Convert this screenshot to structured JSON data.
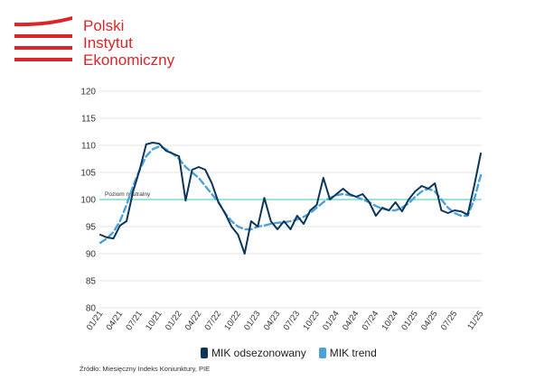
{
  "logo": {
    "line1": "Polski",
    "line2": "Instytut",
    "line3": "Ekonomiczny",
    "color": "#d8262b"
  },
  "source": "Źródło: Miesięczny Indeks Koniunktury, PIE",
  "colors": {
    "mik": "#0d3558",
    "trend": "#4aa3d8",
    "neutral": "#5fd3c8",
    "grid": "#e3e3e3"
  },
  "chart_data": {
    "type": "line",
    "title": "",
    "xlabel": "",
    "ylabel": "",
    "ylim": [
      80,
      120
    ],
    "yticks": [
      80,
      85,
      90,
      95,
      100,
      105,
      110,
      115,
      120
    ],
    "xtick_labels": [
      "01/21",
      "04/21",
      "07/21",
      "10/21",
      "01/22",
      "04/22",
      "07/22",
      "10/22",
      "01/23",
      "04/23",
      "07/23",
      "10/23",
      "01/24",
      "04/24",
      "07/24",
      "10/24",
      "01/25",
      "04/25",
      "07/25",
      "11/25"
    ],
    "xtick_index": [
      0,
      3,
      6,
      9,
      12,
      15,
      18,
      21,
      24,
      27,
      30,
      33,
      36,
      39,
      42,
      45,
      48,
      51,
      54,
      58
    ],
    "reference_line": {
      "value": 100,
      "label": "Poziom neutralny"
    },
    "legend": {
      "position": "bottom"
    },
    "series": [
      {
        "name": "MIK odsezonowany",
        "style": "solid",
        "values": [
          93.5,
          93.0,
          92.8,
          95.2,
          96.0,
          101.5,
          105.5,
          110.2,
          110.5,
          110.3,
          109.0,
          108.5,
          108.0,
          99.8,
          105.5,
          106.0,
          105.5,
          103.0,
          99.5,
          97.5,
          95.0,
          93.5,
          90.0,
          96.0,
          95.0,
          100.3,
          96.0,
          94.5,
          96.0,
          94.5,
          97.0,
          95.5,
          98.0,
          99.0,
          104.0,
          100.0,
          101.0,
          102.0,
          101.0,
          100.5,
          101.0,
          99.5,
          97.0,
          98.5,
          98.0,
          99.5,
          97.8,
          100.0,
          101.5,
          102.5,
          102.0,
          103.0,
          98.0,
          97.5,
          98.0,
          97.8,
          97.2,
          102.5,
          108.5
        ]
      },
      {
        "name": "MIK trend",
        "style": "dashed",
        "values": [
          92.0,
          92.8,
          94.0,
          96.0,
          99.0,
          102.5,
          105.5,
          108.0,
          109.3,
          109.8,
          109.3,
          108.5,
          107.5,
          106.0,
          105.0,
          104.0,
          102.5,
          101.0,
          99.5,
          97.5,
          96.0,
          95.0,
          94.5,
          94.5,
          95.0,
          95.2,
          95.5,
          95.7,
          95.8,
          96.0,
          96.3,
          96.8,
          97.5,
          98.5,
          99.5,
          100.3,
          100.8,
          101.0,
          100.8,
          100.5,
          100.0,
          99.5,
          98.8,
          98.3,
          98.0,
          98.0,
          98.5,
          99.3,
          100.5,
          101.5,
          102.0,
          101.5,
          100.0,
          98.5,
          97.5,
          97.0,
          97.0,
          100.0,
          104.5
        ]
      }
    ]
  }
}
